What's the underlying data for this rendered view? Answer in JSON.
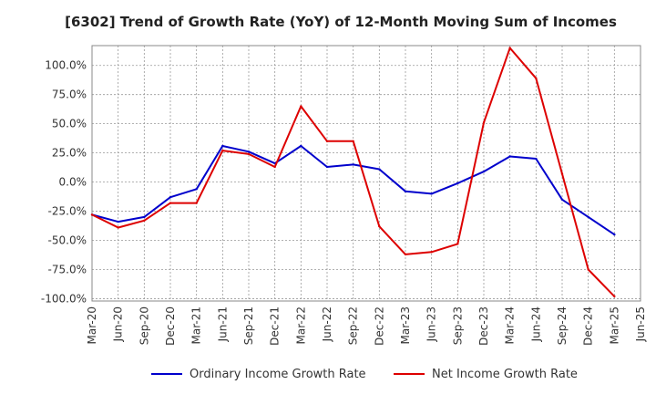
{
  "chart_data": {
    "type": "line",
    "title": "[6302]  Trend of Growth Rate (YoY) of 12-Month Moving Sum of Incomes",
    "xlabel": "",
    "ylabel": "",
    "x_ticks": [
      "Mar-20",
      "Jun-20",
      "Sep-20",
      "Dec-20",
      "Mar-21",
      "Jun-21",
      "Sep-21",
      "Dec-21",
      "Mar-22",
      "Jun-22",
      "Sep-22",
      "Dec-22",
      "Mar-23",
      "Jun-23",
      "Sep-23",
      "Dec-23",
      "Mar-24",
      "Jun-24",
      "Sep-24",
      "Dec-24",
      "Mar-25",
      "Jun-25"
    ],
    "y_ticks": [
      "100.0%",
      "75.0%",
      "50.0%",
      "25.0%",
      "0.0%",
      "-25.0%",
      "-50.0%",
      "-75.0%",
      "-100.0%"
    ],
    "y_tick_values": [
      100,
      75,
      50,
      25,
      0,
      -25,
      -50,
      -75,
      -100
    ],
    "ylim": [
      -102,
      117
    ],
    "grid": true,
    "legend_position": "bottom",
    "series": [
      {
        "name": "Ordinary Income Growth Rate",
        "color": "#0000cc",
        "points": [
          [
            "Mar-20",
            -28
          ],
          [
            "Jun-20",
            -34
          ],
          [
            "Sep-20",
            -30
          ],
          [
            "Dec-20",
            -13
          ],
          [
            "Mar-21",
            -6
          ],
          [
            "Jun-21",
            31
          ],
          [
            "Sep-21",
            26
          ],
          [
            "Dec-21",
            16
          ],
          [
            "Mar-22",
            31
          ],
          [
            "Jun-22",
            13
          ],
          [
            "Sep-22",
            15
          ],
          [
            "Dec-22",
            11
          ],
          [
            "Mar-23",
            -8
          ],
          [
            "Jun-23",
            -10
          ],
          [
            "Sep-23",
            -1
          ],
          [
            "Dec-23",
            9
          ],
          [
            "Mar-24",
            22
          ],
          [
            "Jun-24",
            20
          ],
          [
            "Sep-24",
            -15
          ],
          [
            "Dec-24",
            -30
          ],
          [
            "Mar-25",
            -45
          ]
        ]
      },
      {
        "name": "Net Income Growth Rate",
        "color": "#dd0000",
        "points": [
          [
            "Mar-20",
            -28
          ],
          [
            "Jun-20",
            -39
          ],
          [
            "Sep-20",
            -33
          ],
          [
            "Dec-20",
            -18
          ],
          [
            "Mar-21",
            -18
          ],
          [
            "Jun-21",
            27
          ],
          [
            "Sep-21",
            24
          ],
          [
            "Dec-21",
            13
          ],
          [
            "Mar-22",
            65
          ],
          [
            "Jun-22",
            35
          ],
          [
            "Sep-22",
            35
          ],
          [
            "Dec-22",
            -38
          ],
          [
            "Mar-23",
            -62
          ],
          [
            "Jun-23",
            -60
          ],
          [
            "Sep-23",
            -53
          ],
          [
            "Dec-23",
            51
          ],
          [
            "Mar-24",
            115
          ],
          [
            "Jun-24",
            89
          ],
          [
            "Sep-24",
            7
          ],
          [
            "Dec-24",
            -75
          ],
          [
            "Mar-25",
            -98
          ]
        ]
      }
    ]
  }
}
